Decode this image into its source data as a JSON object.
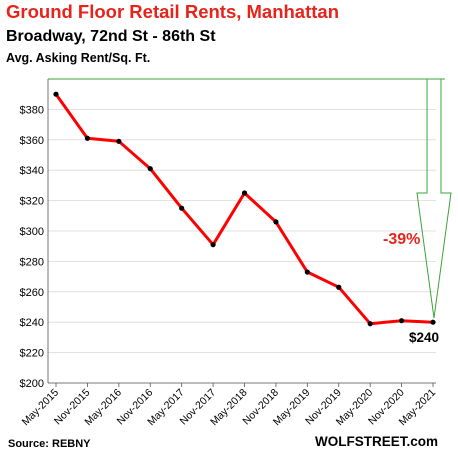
{
  "chart_data": {
    "type": "line",
    "title": "Ground  Floor Retail Rents, Manhattan",
    "subtitle": "Broadway, 72nd St - 86th St",
    "ylabel": "Avg. Asking Rent/Sq. Ft.",
    "ylim": [
      200,
      400
    ],
    "yticks": [
      "$200",
      "$220",
      "$240",
      "$260",
      "$280",
      "$300",
      "$320",
      "$340",
      "$360",
      "$380"
    ],
    "grid": true,
    "series": [
      {
        "color": "#ff0000",
        "x": [
          "May-2015",
          "Nov-2015",
          "May-2016",
          "Nov-2016",
          "May-2017",
          "Nov-2017",
          "May-2018",
          "Nov-2018",
          "May-2019",
          "Nov-2019",
          "May-2020",
          "Nov-2020",
          "May-2021"
        ],
        "values": [
          390,
          361,
          359,
          341,
          315,
          291,
          325,
          306,
          273,
          263,
          239,
          241,
          240
        ]
      }
    ],
    "annotations": {
      "change": "-39%",
      "end_value": "$240"
    },
    "source": "Source: REBNY",
    "brand": "WOLFSTREET.com"
  }
}
